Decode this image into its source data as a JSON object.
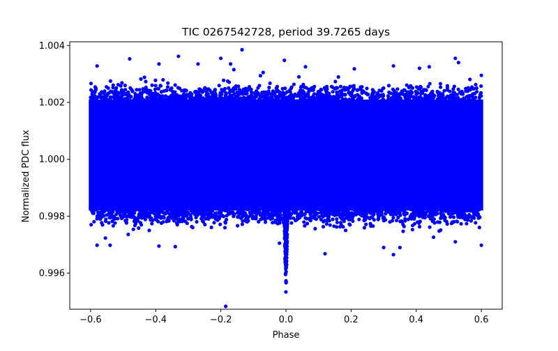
{
  "chart_data": {
    "type": "scatter",
    "title": "TIC 0267542728, period 39.7265 days",
    "xlabel": "Phase",
    "ylabel": "Normalized PDC flux",
    "xlim": [
      -0.664,
      0.664
    ],
    "ylim": [
      0.99473,
      1.00413
    ],
    "grid": false,
    "legend": "none",
    "marker_color": "#0000ff",
    "x_ticks": [
      -0.6,
      -0.4,
      -0.2,
      0.0,
      0.2,
      0.4,
      0.6
    ],
    "x_tick_labels": [
      "−0.6",
      "−0.4",
      "−0.2",
      "0.0",
      "0.2",
      "0.4",
      "0.6"
    ],
    "y_ticks": [
      0.996,
      0.998,
      1.0,
      1.002,
      1.004
    ],
    "y_tick_labels": [
      "0.996",
      "0.998",
      "1.000",
      "1.002",
      "1.004"
    ],
    "series": [
      {
        "name": "flux",
        "band": {
          "x_range": [
            -0.6,
            0.6
          ],
          "baseline": 1.0,
          "core_low": 0.9982,
          "core_high": 1.0021,
          "typical_low": 0.9978,
          "typical_high": 1.0024
        },
        "transit_dip": {
          "x": [
            -0.006,
            -0.004,
            -0.002,
            0.0,
            0.002,
            0.004,
            0.006
          ],
          "y_min": [
            0.9985,
            0.9972,
            0.9962,
            0.9955,
            0.9964,
            0.9974,
            0.9986
          ]
        },
        "outliers": [
          [
            -0.48,
            1.00353
          ],
          [
            -0.39,
            1.00335
          ],
          [
            -0.33,
            1.00362
          ],
          [
            -0.27,
            1.00335
          ],
          [
            -0.2,
            1.00355
          ],
          [
            -0.17,
            1.00335
          ],
          [
            -0.16,
            1.00315
          ],
          [
            -0.135,
            1.00385
          ],
          [
            -0.07,
            1.00305
          ],
          [
            -0.005,
            1.00348
          ],
          [
            0.06,
            1.00325
          ],
          [
            0.21,
            1.00318
          ],
          [
            0.33,
            1.00328
          ],
          [
            0.41,
            1.0032
          ],
          [
            0.44,
            1.00325
          ],
          [
            0.52,
            1.00355
          ],
          [
            0.53,
            1.0034
          ],
          [
            0.6,
            1.00295
          ],
          [
            -0.58,
            1.00328
          ],
          [
            -0.58,
            0.99698
          ],
          [
            -0.54,
            0.99698
          ],
          [
            -0.39,
            0.99695
          ],
          [
            -0.34,
            0.99693
          ],
          [
            -0.02,
            0.99705
          ],
          [
            0.12,
            0.99668
          ],
          [
            0.3,
            0.9969
          ],
          [
            0.35,
            0.9969
          ],
          [
            0.33,
            0.99665
          ],
          [
            0.6,
            0.99698
          ],
          [
            0.52,
            0.9971
          ],
          [
            -0.185,
            0.99483
          ]
        ]
      }
    ]
  }
}
